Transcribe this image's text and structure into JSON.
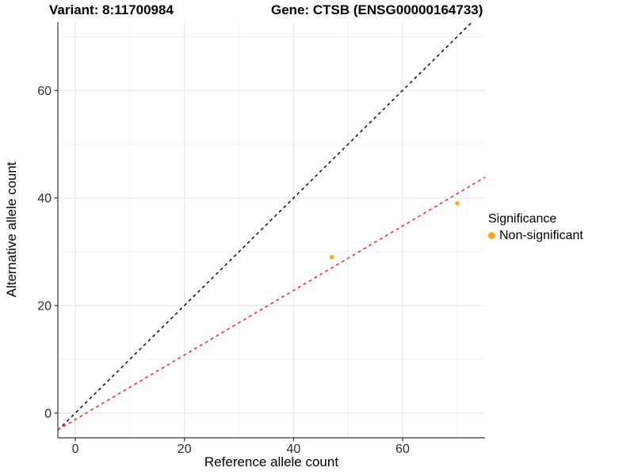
{
  "figure": {
    "title_left": "Variant: 8:11700984",
    "title_right": "Gene: CTSB (ENSG00000164733)"
  },
  "legend": {
    "title": "Significance",
    "items": [
      {
        "label": "Non-significant",
        "color": "#FFA41B"
      }
    ]
  },
  "chart_data": {
    "type": "scatter",
    "title": "Variant: 8:11700984   Gene: CTSB (ENSG00000164733)",
    "xlabel": "Reference allele count",
    "ylabel": "Alternative allele count",
    "xlim": [
      -3.2,
      75.1
    ],
    "ylim": [
      -4.6,
      72.7
    ],
    "x_major_ticks": [
      0,
      20,
      40,
      60
    ],
    "x_minor_ticks": [
      10,
      30,
      50,
      70
    ],
    "y_major_ticks": [
      0,
      20,
      40,
      60
    ],
    "y_minor_ticks": [
      10,
      30,
      50,
      70
    ],
    "grid": true,
    "legend_position": "right",
    "legend_title": "Significance",
    "series": [
      {
        "name": "Non-significant",
        "color": "#FFA41B",
        "points": [
          {
            "x": 47,
            "y": 29
          },
          {
            "x": 70,
            "y": 39
          }
        ]
      }
    ],
    "lines": [
      {
        "name": "identity-line",
        "slope": 1,
        "intercept": 0,
        "color": "#1a1a1a",
        "style": "dashed"
      },
      {
        "name": "fit-line",
        "slope": 0.6,
        "intercept": -1.2,
        "color": "#f23333",
        "style": "dashed"
      }
    ],
    "colors": {
      "grid_major": "#e3e3e3",
      "grid_minor": "#f1f1f1",
      "axis_line": "#333333",
      "tick_label": "#2e2e2e",
      "point": "#FFA41B"
    },
    "point_radius": 2.7
  }
}
